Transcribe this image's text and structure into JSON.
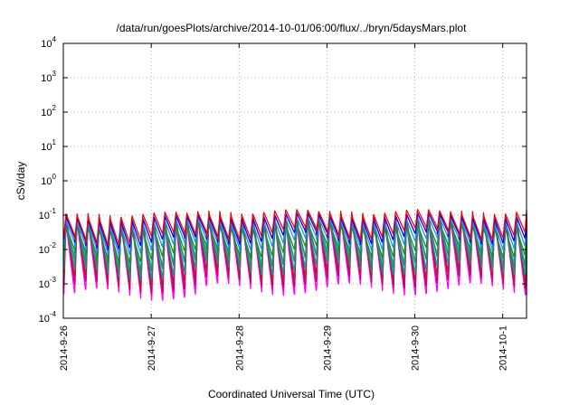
{
  "chart_data": {
    "type": "line",
    "title": "/data/run/goesPlots/archive/2014-10-01/06:00/flux/../bryn/5daysMars.plot",
    "xlabel": "Coordinated Universal Time (UTC)",
    "ylabel": "cSv/day",
    "yscale": "log",
    "ylim": [
      0.0001,
      10000
    ],
    "xlim": [
      "2014-09-26T00:00",
      "2014-10-01T06:30"
    ],
    "x_ticks": [
      "2014-9-26",
      "2014-9-27",
      "2014-9-28",
      "2014-9-29",
      "2014-9-30",
      "2014-10-1"
    ],
    "y_ticks": [
      {
        "base": "10",
        "exp": "-4",
        "value": 0.0001
      },
      {
        "base": "10",
        "exp": "-3",
        "value": 0.001
      },
      {
        "base": "10",
        "exp": "-2",
        "value": 0.01
      },
      {
        "base": "10",
        "exp": "-1",
        "value": 0.1
      },
      {
        "base": "10",
        "exp": "0",
        "value": 1
      },
      {
        "base": "10",
        "exp": "1",
        "value": 10
      },
      {
        "base": "10",
        "exp": "2",
        "value": 100
      },
      {
        "base": "10",
        "exp": "3",
        "value": 1000
      },
      {
        "base": "10",
        "exp": "4",
        "value": 10000
      }
    ],
    "grid": true,
    "sawtooth_period_hours": 3,
    "series": [
      {
        "color": "#ff00ff",
        "peak": 0.06,
        "trough": 0.0005
      },
      {
        "color": "#c8006e",
        "peak": 0.07,
        "trough": 0.0008
      },
      {
        "color": "#b22222",
        "peak": 0.09,
        "trough": 0.0012
      },
      {
        "color": "#00a0a0",
        "peak": 0.05,
        "trough": 0.002
      },
      {
        "color": "#00ced1",
        "peak": 0.045,
        "trough": 0.004
      },
      {
        "color": "#2e8b57",
        "peak": 0.05,
        "trough": 0.003
      },
      {
        "color": "#228b22",
        "peak": 0.04,
        "trough": 0.006
      },
      {
        "color": "#1e90ff",
        "peak": 0.06,
        "trough": 0.01
      },
      {
        "color": "#0000ff",
        "peak": 0.08,
        "trough": 0.015
      },
      {
        "color": "#ff0000",
        "peak": 0.1,
        "trough": 0.02
      }
    ]
  }
}
